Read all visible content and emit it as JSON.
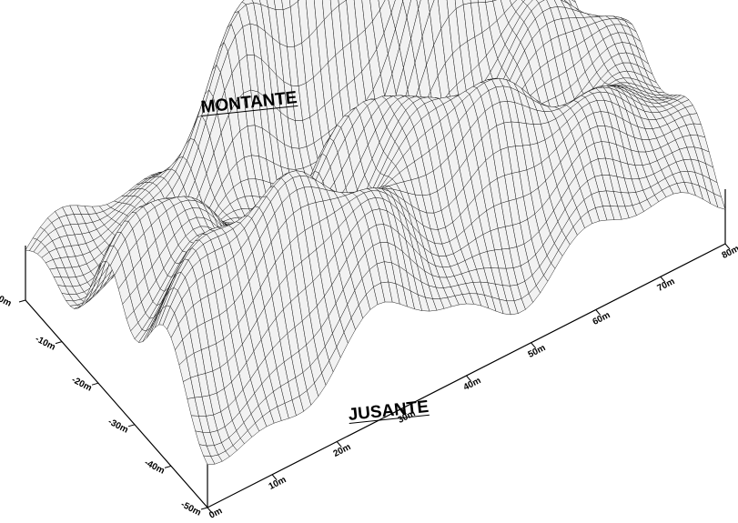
{
  "labels": {
    "upstream": "MONTANTE",
    "downstream": "JUSANTE"
  },
  "x_axis": {
    "ticks": [
      "0m",
      "10m",
      "20m",
      "30m",
      "40m",
      "50m",
      "60m",
      "70m",
      "80m"
    ]
  },
  "y_axis": {
    "ticks": [
      "0m",
      "-10m",
      "-20m",
      "-30m",
      "-40m",
      "-50m"
    ]
  },
  "colors": {
    "surface": "#f2f2f2",
    "mesh": "#111111",
    "frame": "#000000"
  }
}
